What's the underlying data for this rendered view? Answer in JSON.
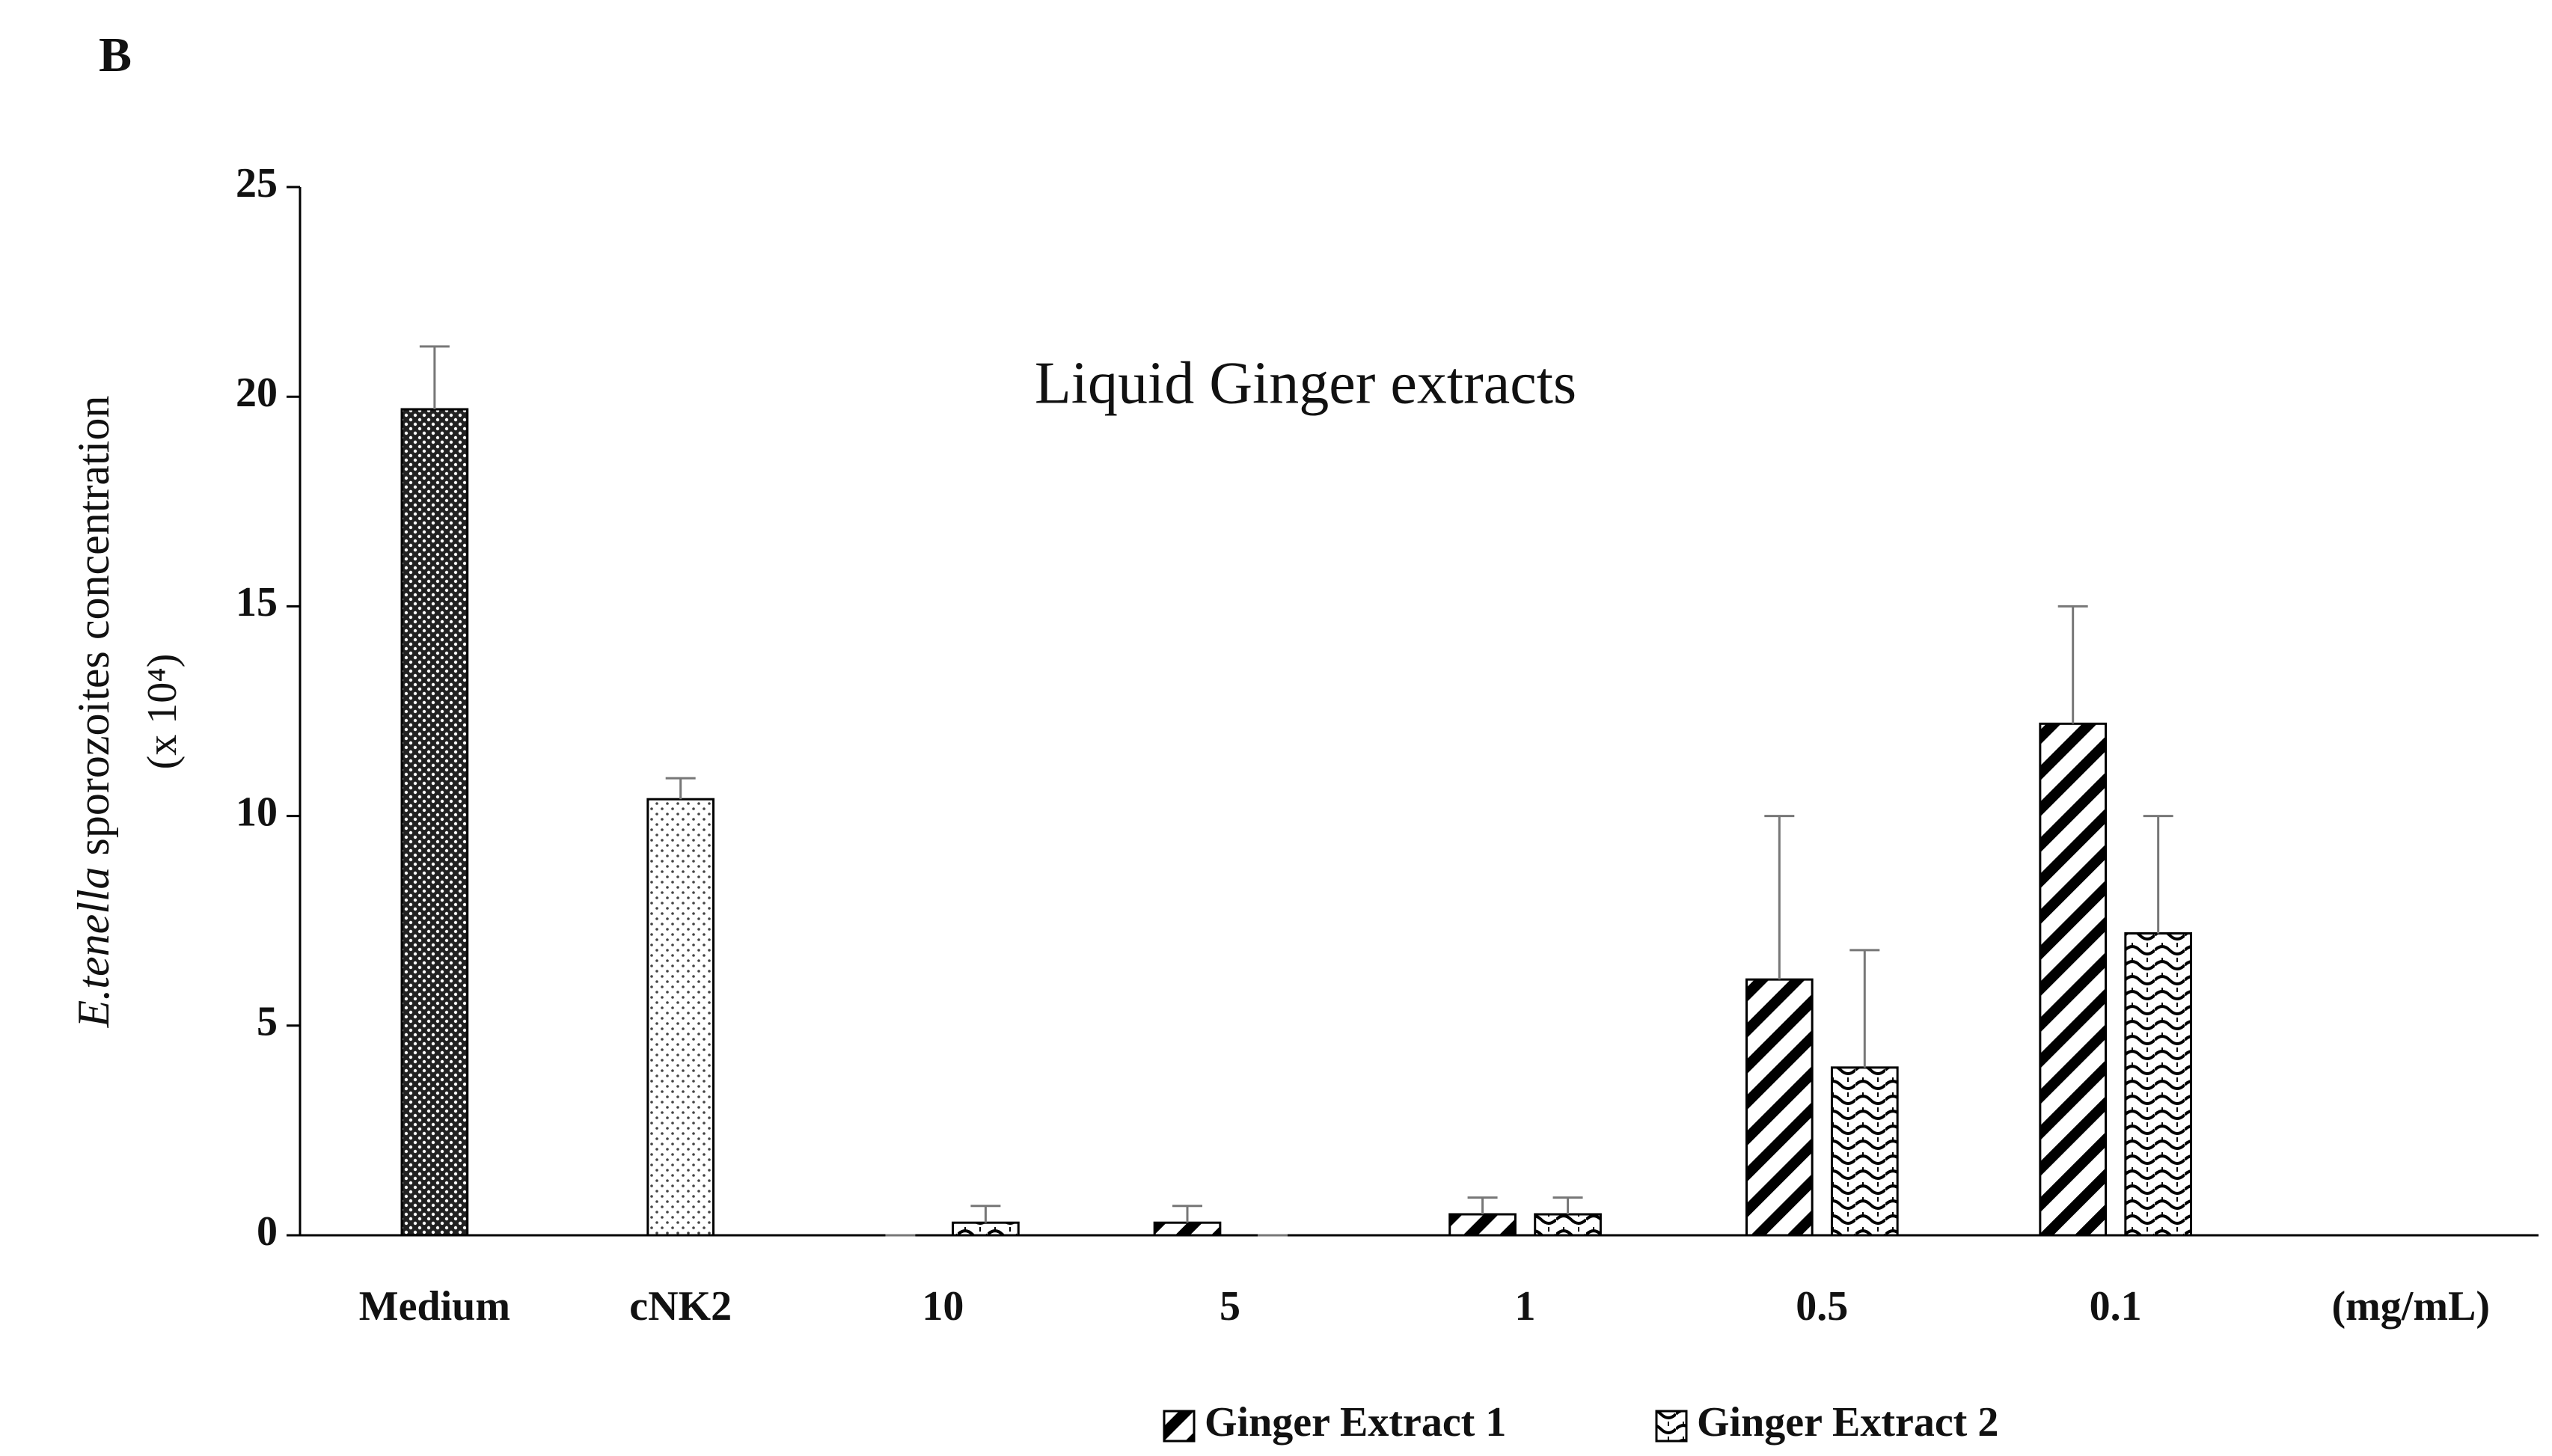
{
  "chart_data": {
    "type": "bar",
    "panel_label": "B",
    "annotation": "Liquid Ginger extracts",
    "y_label_italic": "E.tenella",
    "y_label": "sporozoites concentration",
    "y_label_unit": "(x 10⁴)",
    "x_unit_label": "(mg/mL)",
    "categories": [
      "Medium",
      "cNK2",
      "10",
      "5",
      "1",
      "0.5",
      "0.1"
    ],
    "control": {
      "values": [
        19.7,
        10.4,
        null,
        null,
        null,
        null,
        null
      ],
      "errors": [
        1.5,
        0.5,
        null,
        null,
        null,
        null,
        null
      ],
      "patterns": [
        "dense-dots",
        "sparse-dots",
        null,
        null,
        null,
        null,
        null
      ]
    },
    "series": [
      {
        "name": "Ginger Extract 1",
        "pattern": "diagonal",
        "color": "#000000",
        "values": [
          null,
          null,
          0,
          0.3,
          0.5,
          6.1,
          12.2
        ],
        "errors": [
          null,
          null,
          0,
          0.4,
          0.4,
          3.9,
          2.8
        ]
      },
      {
        "name": "Ginger Extract 2",
        "pattern": "waves",
        "color": "#000000",
        "values": [
          null,
          null,
          0.3,
          0,
          0.5,
          4.0,
          7.2
        ],
        "errors": [
          null,
          null,
          0.4,
          0,
          0.4,
          2.8,
          2.8
        ]
      }
    ],
    "ylim": [
      0,
      25
    ],
    "yticks": [
      0,
      5,
      10,
      15,
      20,
      25
    ],
    "grid": false
  }
}
